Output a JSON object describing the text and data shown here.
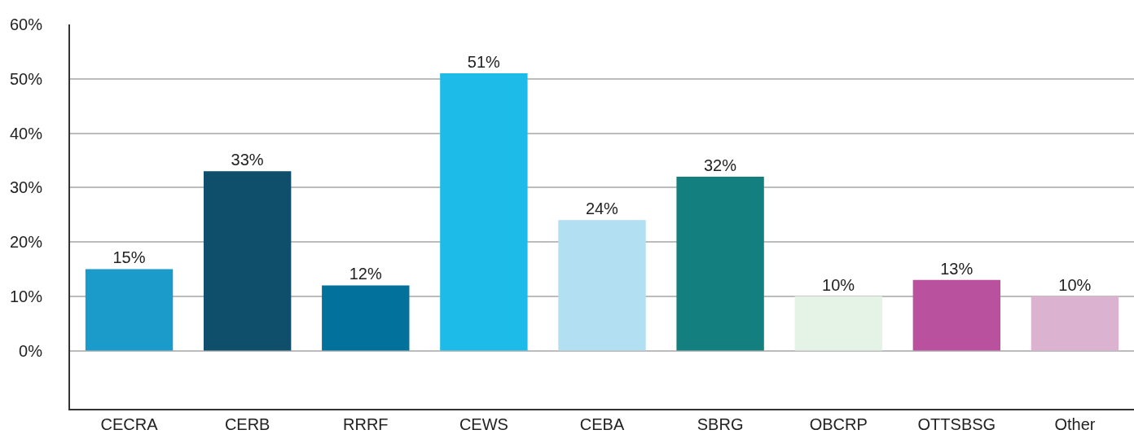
{
  "chart_data": {
    "type": "bar",
    "categories": [
      "CECRA",
      "CERB",
      "RRRF",
      "CEWS",
      "CEBA",
      "SBRG",
      "OBCRP",
      "OTTSBSG",
      "Other"
    ],
    "values": [
      15,
      33,
      12,
      51,
      24,
      32,
      10,
      13,
      10
    ],
    "value_labels": [
      "15%",
      "33%",
      "12%",
      "51%",
      "24%",
      "32%",
      "10%",
      "13%",
      "10%"
    ],
    "colors": [
      "#1a9bc9",
      "#0f4f6b",
      "#02729c",
      "#1cbbe8",
      "#b2dff2",
      "#137f7f",
      "#e5f2e6",
      "#b9519e",
      "#dbb3d0"
    ],
    "ylim": [
      -10.7,
      60
    ],
    "yticks": [
      {
        "value": 0,
        "label": "0%"
      },
      {
        "value": 10,
        "label": "10%"
      },
      {
        "value": 20,
        "label": "20%"
      },
      {
        "value": 30,
        "label": "30%"
      },
      {
        "value": 40,
        "label": "40%"
      },
      {
        "value": 50,
        "label": "50%"
      },
      {
        "value": 60,
        "label": "60%"
      }
    ],
    "grid": "y"
  }
}
